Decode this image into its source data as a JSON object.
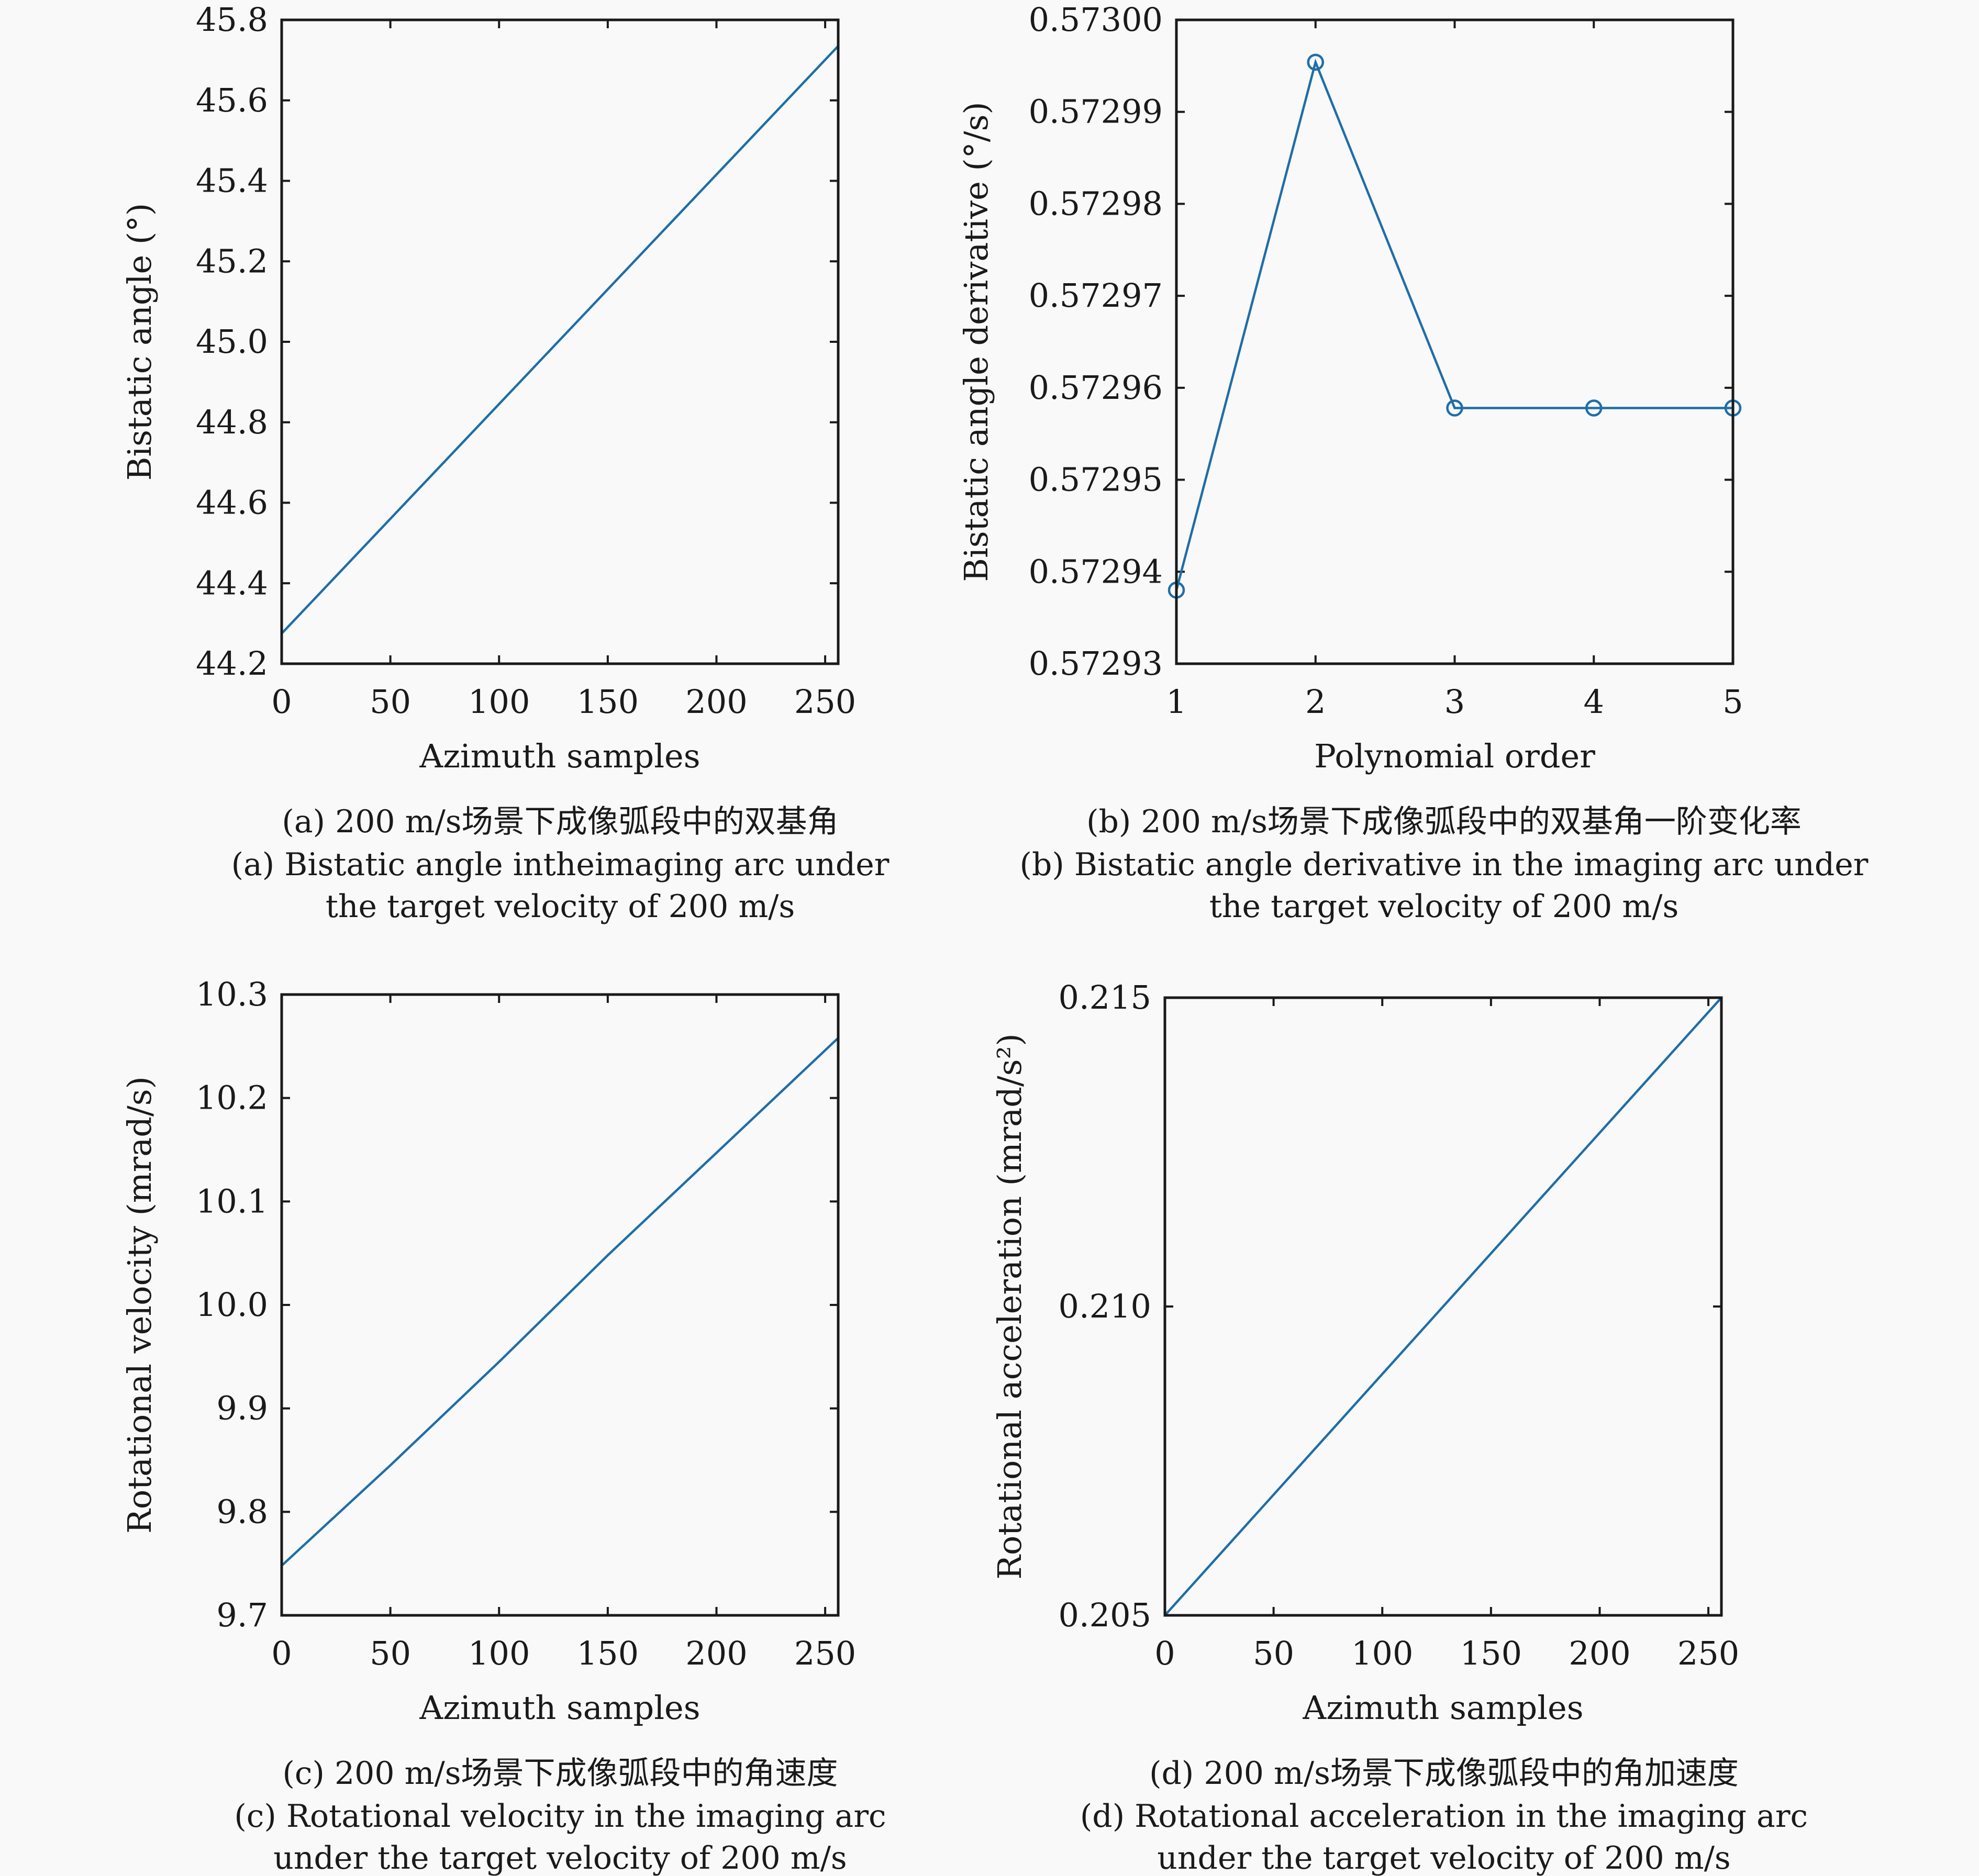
{
  "chart_data": [
    {
      "id": "a",
      "type": "line",
      "xlabel": "Azimuth samples",
      "ylabel": "Bistatic angle (°)",
      "xlim": [
        0,
        256
      ],
      "ylim": [
        44.2,
        45.8
      ],
      "xticks": [
        0,
        50,
        100,
        150,
        200,
        250
      ],
      "yticks": [
        44.2,
        44.4,
        44.6,
        44.8,
        45.0,
        45.2,
        45.4,
        45.6,
        45.8
      ],
      "ytick_labels": [
        "44.2",
        "44.4",
        "44.6",
        "44.8",
        "45.0",
        "45.2",
        "45.4",
        "45.6",
        "45.8"
      ],
      "x": [
        0,
        256
      ],
      "y": [
        44.275,
        45.735
      ],
      "grid": false,
      "caption_cn": "(a) 200 m/s场景下成像弧段中的双基角",
      "caption_en": [
        "(a) Bistatic angle intheimaging arc under",
        "the target velocity of 200 m/s"
      ]
    },
    {
      "id": "b",
      "type": "line",
      "markers": true,
      "xlabel": "Polynomial order",
      "ylabel": "Bistatic angle derivative (°/s)",
      "xlim": [
        1,
        5
      ],
      "ylim": [
        0.57293,
        0.573
      ],
      "xticks": [
        1,
        2,
        3,
        4,
        5
      ],
      "yticks": [
        0.57293,
        0.57294,
        0.57295,
        0.57296,
        0.57297,
        0.57298,
        0.57299,
        0.573
      ],
      "ytick_labels": [
        "0.57293",
        "0.57294",
        "0.57295",
        "0.57296",
        "0.57297",
        "0.57298",
        "0.57299",
        "0.57300"
      ],
      "x": [
        1,
        2,
        3,
        4,
        5
      ],
      "y": [
        0.572938,
        0.5729954,
        0.5729578,
        0.5729578,
        0.5729578
      ],
      "grid": false,
      "caption_cn": "(b) 200 m/s场景下成像弧段中的双基角一阶变化率",
      "caption_en": [
        "(b) Bistatic angle derivative in the imaging arc under",
        "the target velocity of 200 m/s"
      ]
    },
    {
      "id": "c",
      "type": "line",
      "xlabel": "Azimuth samples",
      "ylabel": "Rotational velocity (mrad/s)",
      "xlim": [
        0,
        256
      ],
      "ylim": [
        9.7,
        10.3
      ],
      "xticks": [
        0,
        50,
        100,
        150,
        200,
        250
      ],
      "yticks": [
        9.7,
        9.8,
        9.9,
        10.0,
        10.1,
        10.2,
        10.3
      ],
      "ytick_labels": [
        "9.7",
        "9.8",
        "9.9",
        "10.0",
        "10.1",
        "10.2",
        "10.3"
      ],
      "x": [
        0,
        50,
        100,
        150,
        200,
        256
      ],
      "y": [
        9.748,
        9.845,
        9.945,
        10.048,
        10.147,
        10.258
      ],
      "grid": false,
      "caption_cn": "(c) 200 m/s场景下成像弧段中的角速度",
      "caption_en": [
        "(c) Rotational velocity in the imaging arc",
        "under the target velocity of 200 m/s"
      ]
    },
    {
      "id": "d",
      "type": "line",
      "xlabel": "Azimuth samples",
      "ylabel": "Rotational acceleration (mrad/s²)",
      "xlim": [
        0,
        256
      ],
      "ylim": [
        0.205,
        0.215
      ],
      "xticks": [
        0,
        50,
        100,
        150,
        200,
        250
      ],
      "yticks": [
        0.205,
        0.21,
        0.215
      ],
      "ytick_labels": [
        "0.205",
        "0.210",
        "0.215"
      ],
      "x": [
        0,
        256
      ],
      "y": [
        0.205,
        0.215
      ],
      "grid": false,
      "caption_cn": "(d) 200 m/s场景下成像弧段中的角加速度",
      "caption_en": [
        "(d) Rotational acceleration in the imaging arc",
        "under the target velocity of 200 m/s"
      ]
    }
  ]
}
